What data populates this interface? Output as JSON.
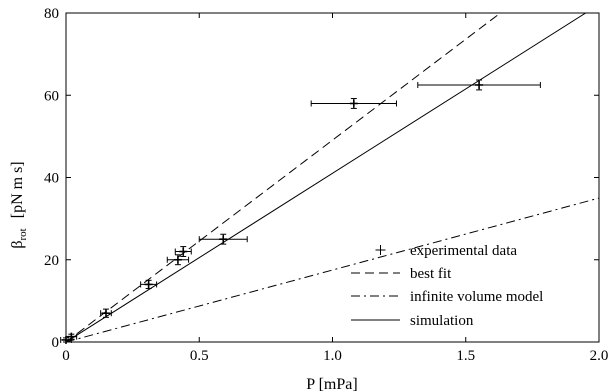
{
  "chart_data": {
    "type": "line",
    "xlabel": "P [mPa]",
    "ylabel": {
      "symbol": "β",
      "subscript": "rot",
      "units": "[pN m s]"
    },
    "xlim": [
      0,
      2.0
    ],
    "ylim": [
      0,
      80
    ],
    "x_ticks": [
      "0",
      "0.5",
      "1.0",
      "1.5",
      "2.0"
    ],
    "y_ticks": [
      "0",
      "20",
      "40",
      "60",
      "80"
    ],
    "grid": false,
    "legend_position": "bottom-right",
    "series": [
      {
        "name": "experimental data",
        "kind": "errorbar",
        "marker": "+",
        "points": [
          {
            "x": 0.0,
            "y": 0.5,
            "xerr": 0.02,
            "yerr": 0.5
          },
          {
            "x": 0.02,
            "y": 1.3,
            "xerr": 0.02,
            "yerr": 0.6
          },
          {
            "x": 0.15,
            "y": 7.0,
            "xerr": 0.02,
            "yerr": 1.0
          },
          {
            "x": 0.31,
            "y": 14.0,
            "xerr": 0.03,
            "yerr": 1.0
          },
          {
            "x": 0.42,
            "y": 20.0,
            "xerr": 0.04,
            "yerr": 1.2
          },
          {
            "x": 0.44,
            "y": 22.0,
            "xerr": 0.03,
            "yerr": 1.2
          },
          {
            "x": 0.59,
            "y": 25.0,
            "xerr": 0.09,
            "yerr": 1.2
          },
          {
            "x": 1.08,
            "y": 58.0,
            "xerr": 0.16,
            "yerr": 1.2
          },
          {
            "x": 1.55,
            "y": 62.5,
            "xerr": 0.23,
            "yerr": 1.2
          }
        ]
      },
      {
        "name": "best fit",
        "kind": "line",
        "dash": "dashed",
        "x": [
          0,
          1.63
        ],
        "y": [
          0,
          80
        ]
      },
      {
        "name": "infinite volume model",
        "kind": "line",
        "dash": "dashdot",
        "x": [
          0,
          2.0
        ],
        "y": [
          0,
          35
        ]
      },
      {
        "name": "simulation",
        "kind": "line",
        "dash": "solid",
        "x": [
          0,
          1.95
        ],
        "y": [
          0,
          80
        ]
      }
    ],
    "colors": {
      "ink": "#000000",
      "background": "#ffffff"
    }
  }
}
